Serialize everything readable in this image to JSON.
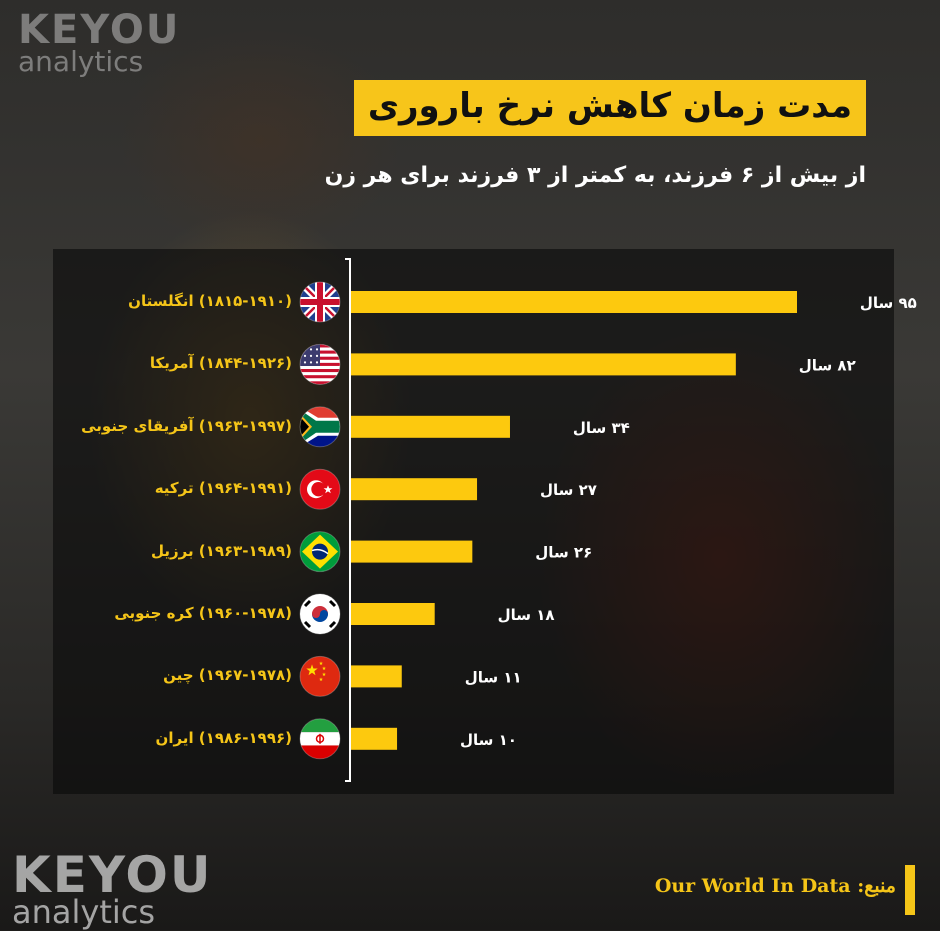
{
  "brand": {
    "name_top": "KEYOU",
    "name_bottom": "analytics"
  },
  "title": "مدت زمان کاهش نرخ باروری",
  "subtitle": "از بیش از ۶ فرزند، به کمتر از ۳ فرزند برای هر زن",
  "source": {
    "label": "منبع:",
    "value": "Our World In Data"
  },
  "colors": {
    "accent": "#f5c518",
    "bar": "#fdc90e",
    "title_bg": "#f7c51a",
    "value_text": "#ffffff"
  },
  "chart_data": {
    "type": "bar",
    "orientation": "horizontal",
    "categories": [
      "(۱۸۱۵-۱۹۱۰) انگلستان",
      "(۱۸۴۴-۱۹۲۶) آمریکا",
      "(۱۹۶۳-۱۹۹۷) آفریقای جنوبی",
      "(۱۹۶۴-۱۹۹۱) ترکیه",
      "(۱۹۶۳-۱۹۸۹) برزیل",
      "(۱۹۶۰-۱۹۷۸) کره جنوبی",
      "(۱۹۶۷-۱۹۷۸) چین",
      "(۱۹۸۶-۱۹۹۶) ایران"
    ],
    "flags": [
      "uk-flag-icon",
      "usa-flag-icon",
      "south-africa-flag-icon",
      "turkey-flag-icon",
      "brazil-flag-icon",
      "south-korea-flag-icon",
      "china-flag-icon",
      "iran-flag-icon"
    ],
    "values": [
      95,
      82,
      34,
      27,
      26,
      18,
      11,
      10
    ],
    "value_labels": [
      "۹۵ سال",
      "۸۲ سال",
      "۳۴ سال",
      "۲۷ سال",
      "۲۶ سال",
      "۱۸ سال",
      "۱۱ سال",
      "۱۰ سال"
    ],
    "xlim": [
      0,
      95
    ],
    "grid": false
  }
}
